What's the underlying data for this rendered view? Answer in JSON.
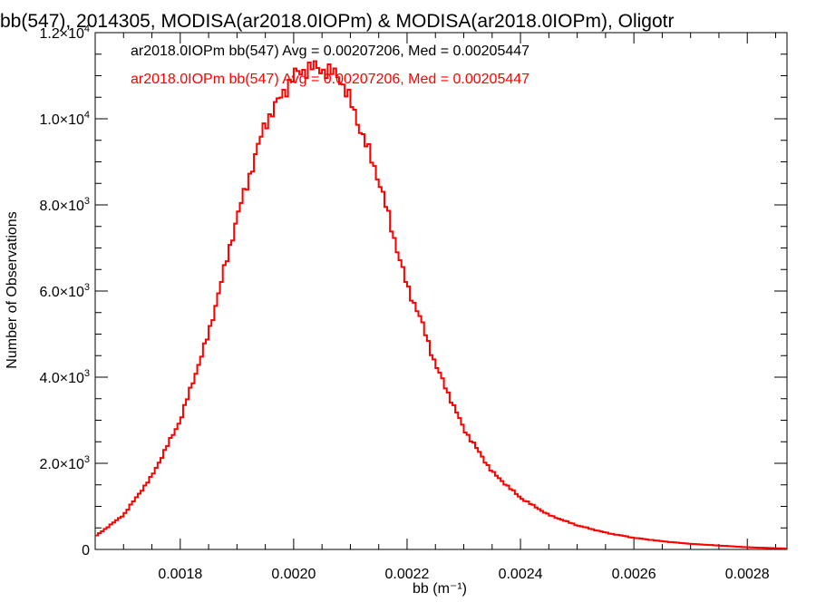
{
  "chart_data": {
    "type": "line",
    "title": "bb(547), 2014305, MODISA(ar2018.0IOPm) & MODISA(ar2018.0IOPm), Oligotr",
    "xlabel": "bb (m⁻¹)",
    "ylabel": "Number of Observations",
    "xlim": [
      0.00165,
      0.00287
    ],
    "ylim": [
      0,
      12000
    ],
    "x_ticks": [
      0.0018,
      0.002,
      0.0022,
      0.0024,
      0.0026,
      0.0028
    ],
    "x_tick_labels": [
      "0.0018",
      "0.0020",
      "0.0022",
      "0.0024",
      "0.0026",
      "0.0028"
    ],
    "y_ticks": [
      {
        "value": 0,
        "mantissa": "0",
        "exp": ""
      },
      {
        "value": 2000,
        "mantissa": "2.0×10",
        "exp": "3"
      },
      {
        "value": 4000,
        "mantissa": "4.0×10",
        "exp": "3"
      },
      {
        "value": 6000,
        "mantissa": "6.0×10",
        "exp": "3"
      },
      {
        "value": 8000,
        "mantissa": "8.0×10",
        "exp": "3"
      },
      {
        "value": 10000,
        "mantissa": "1.0×10",
        "exp": "4"
      },
      {
        "value": 12000,
        "mantissa": "1.2×10",
        "exp": "4"
      }
    ],
    "grid": false,
    "series": [
      {
        "name": "ar2018.0IOPm bb(547)",
        "color": "#000000",
        "stats_text": "ar2018.0IOPm bb(547) Avg = 0.00207206, Med = 0.00205447",
        "x": [
          0.00165,
          0.0017,
          0.00175,
          0.0018,
          0.00185,
          0.0019,
          0.00195,
          0.002,
          0.00203,
          0.00205,
          0.00208,
          0.0021,
          0.00215,
          0.0022,
          0.00222,
          0.00225,
          0.0023,
          0.00235,
          0.0024,
          0.00245,
          0.0025,
          0.00255,
          0.0026,
          0.00265,
          0.0027,
          0.00275,
          0.0028,
          0.00287
        ],
        "y": [
          300,
          800,
          1700,
          3000,
          5000,
          7700,
          9900,
          11000,
          11200,
          11150,
          11000,
          10400,
          8600,
          6100,
          5500,
          4300,
          2800,
          1800,
          1200,
          800,
          560,
          390,
          270,
          190,
          130,
          90,
          50,
          20
        ]
      },
      {
        "name": "ar2018.0IOPm bb(547)",
        "color": "#ff0000",
        "stats_text": "ar2018.0IOPm bb(547) Avg = 0.00207206, Med = 0.00205447",
        "x": [
          0.00165,
          0.0017,
          0.00175,
          0.0018,
          0.00185,
          0.0019,
          0.00195,
          0.002,
          0.00203,
          0.00205,
          0.00208,
          0.0021,
          0.00215,
          0.0022,
          0.00222,
          0.00225,
          0.0023,
          0.00235,
          0.0024,
          0.00245,
          0.0025,
          0.00255,
          0.0026,
          0.00265,
          0.0027,
          0.00275,
          0.0028,
          0.00287
        ],
        "y": [
          300,
          800,
          1700,
          3000,
          5000,
          7700,
          9900,
          11000,
          11200,
          11150,
          11000,
          10400,
          8600,
          6100,
          5500,
          4300,
          2800,
          1800,
          1200,
          800,
          560,
          390,
          270,
          190,
          130,
          90,
          50,
          20
        ]
      }
    ]
  }
}
